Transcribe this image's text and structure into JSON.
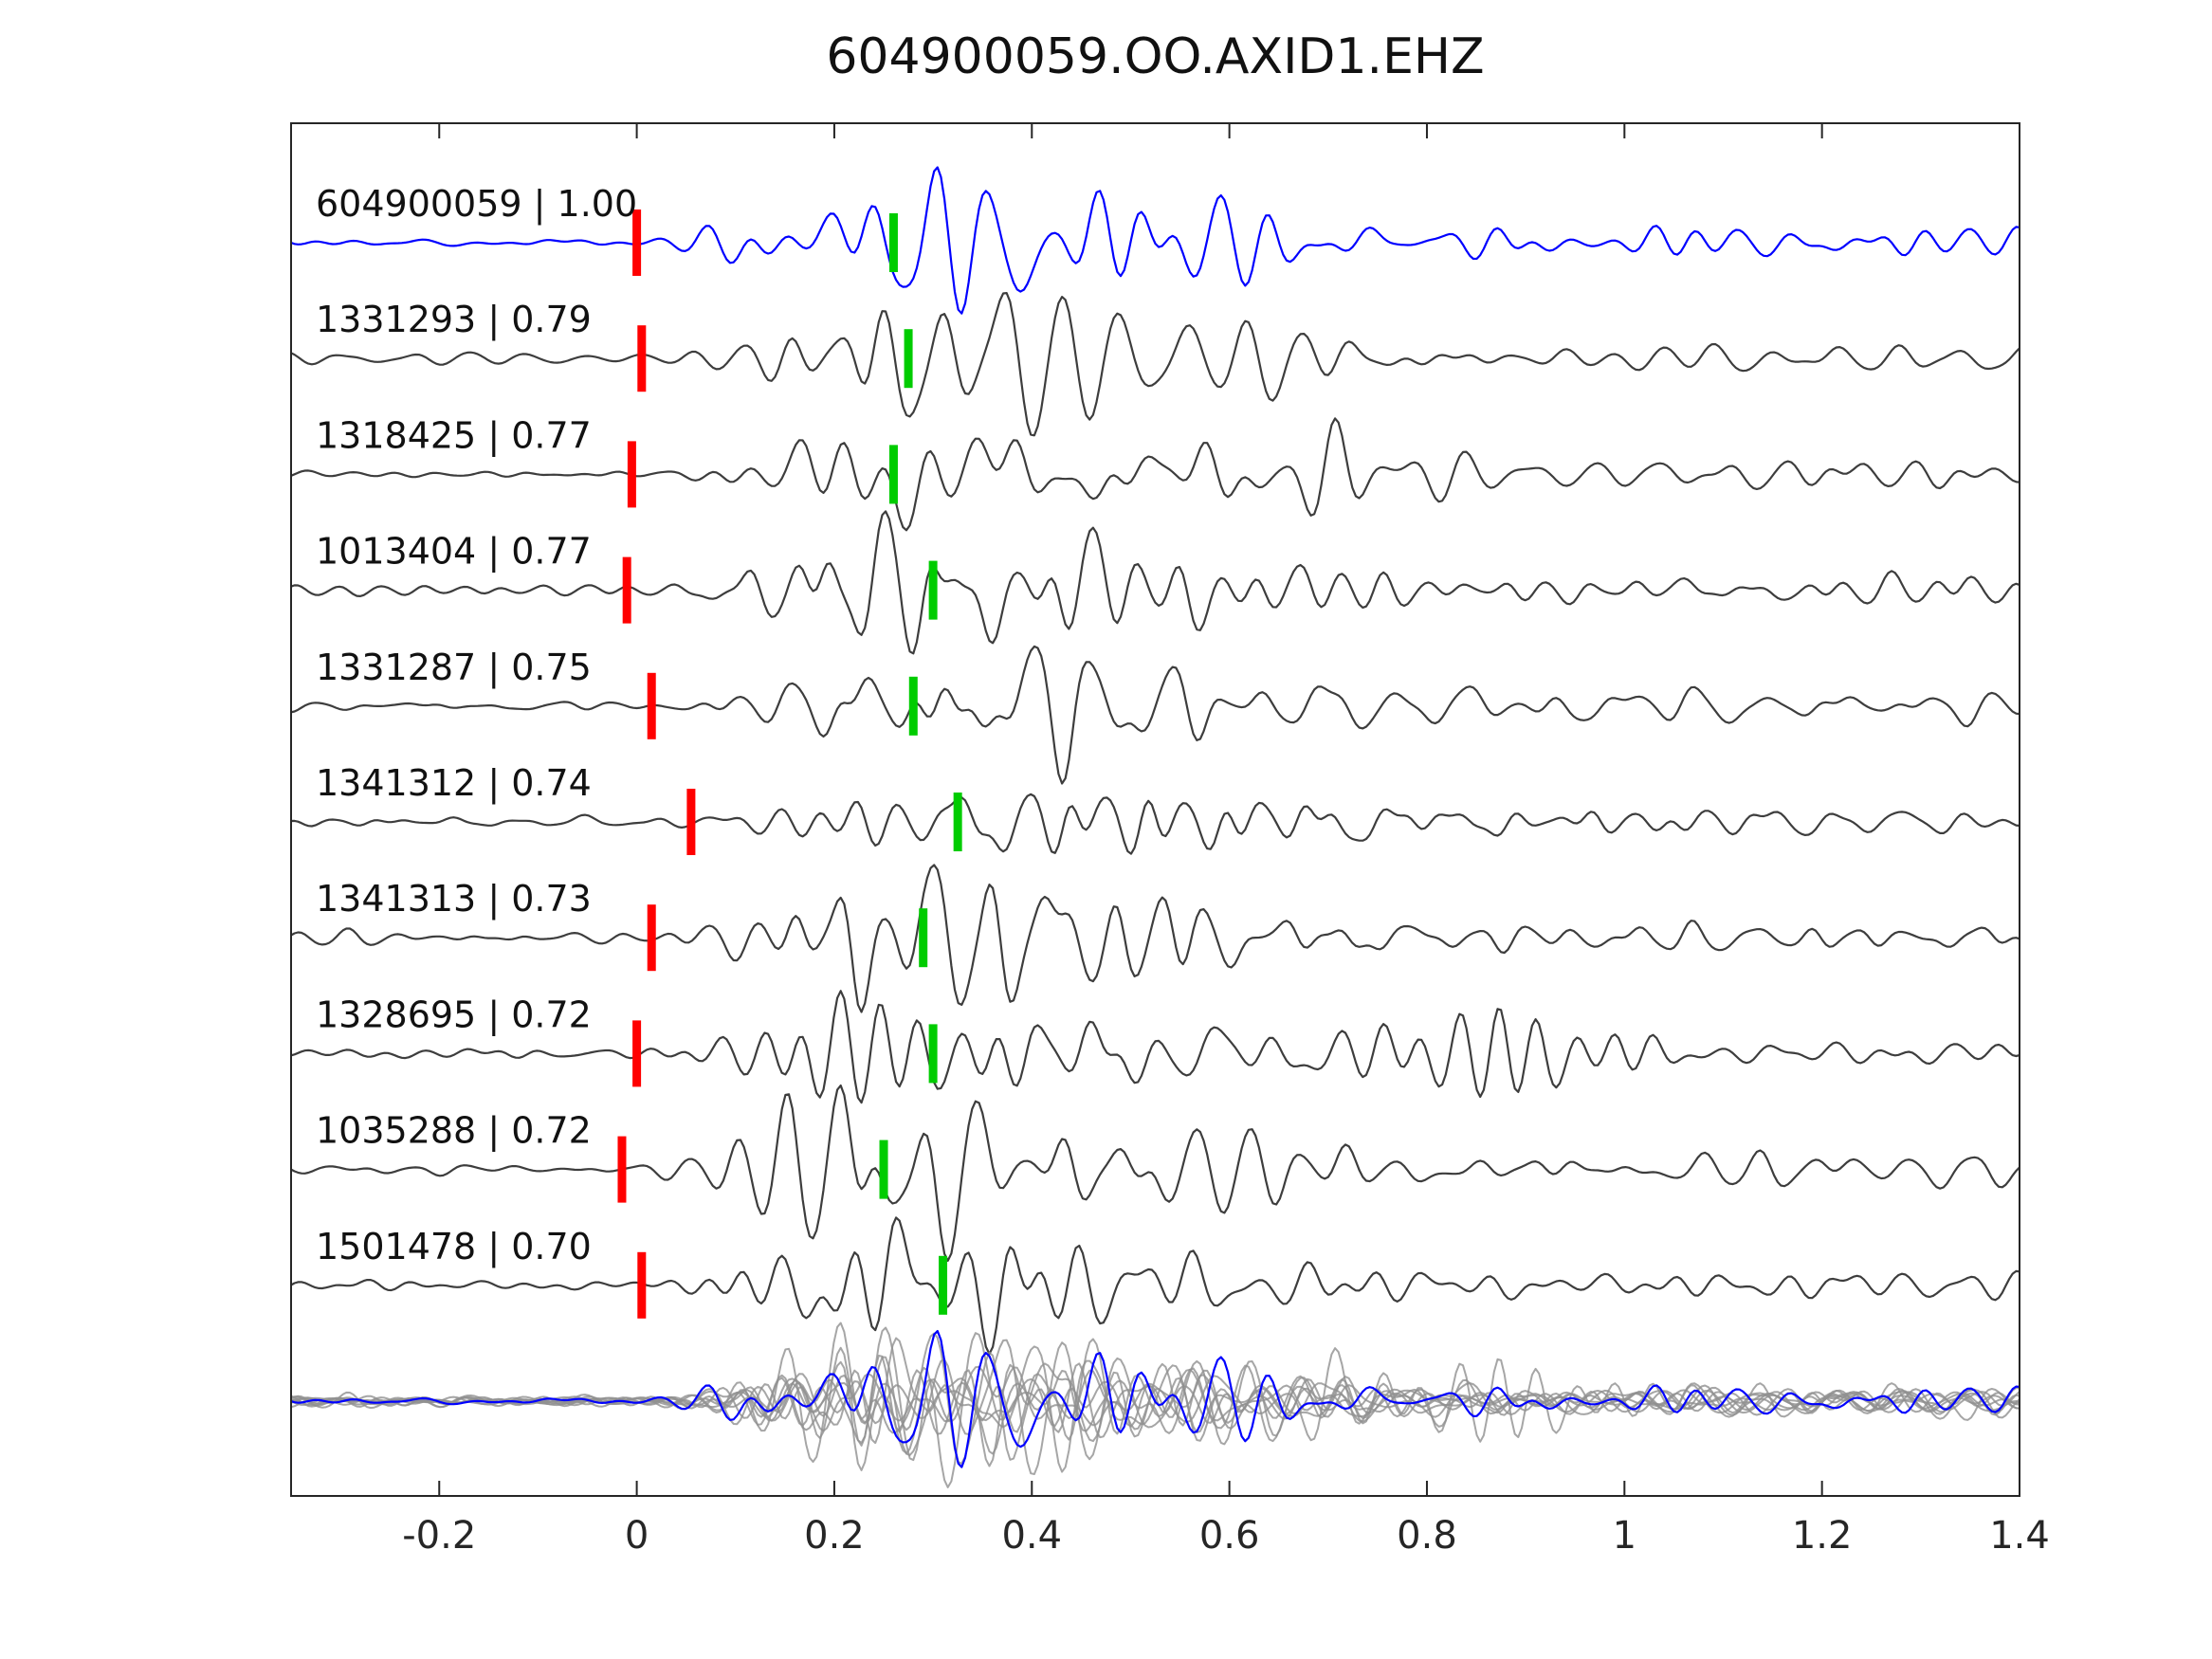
{
  "title": "604900059.OO.AXID1.EHZ",
  "colors": {
    "template_trace": "#0000ff",
    "match_trace": "#3d3d3d",
    "overlay_trace": "#909090",
    "pick_red": "#ff0000",
    "pick_green": "#00cc00",
    "axis": "#262626",
    "background": "#ffffff"
  },
  "chart_data": {
    "type": "line",
    "title": "604900059.OO.AXID1.EHZ",
    "xlabel": "",
    "ylabel": "",
    "xlim": [
      -0.35,
      1.4
    ],
    "x_ticks": [
      -0.2,
      0,
      0.2,
      0.4,
      0.6,
      0.8,
      1,
      1.2,
      1.4
    ],
    "x_tick_labels": [
      "-0.2",
      "0",
      "0.2",
      "0.4",
      "0.6",
      "0.8",
      "1",
      "1.2",
      "1.4"
    ],
    "grid": false,
    "legend": "none",
    "traces": [
      {
        "id": "604900059",
        "correlation": "1.00",
        "label": "604900059 | 1.00",
        "color": "#0000ff",
        "pick_red": 0.0,
        "pick_green": 0.26
      },
      {
        "id": "1331293",
        "correlation": "0.79",
        "label": "1331293 | 0.79",
        "color": "#3d3d3d",
        "pick_red": 0.005,
        "pick_green": 0.275
      },
      {
        "id": "1318425",
        "correlation": "0.77",
        "label": "1318425 | 0.77",
        "color": "#3d3d3d",
        "pick_red": -0.005,
        "pick_green": 0.26
      },
      {
        "id": "1013404",
        "correlation": "0.77",
        "label": "1013404 | 0.77",
        "color": "#3d3d3d",
        "pick_red": -0.01,
        "pick_green": 0.3
      },
      {
        "id": "1331287",
        "correlation": "0.75",
        "label": "1331287 | 0.75",
        "color": "#3d3d3d",
        "pick_red": 0.015,
        "pick_green": 0.28
      },
      {
        "id": "1341312",
        "correlation": "0.74",
        "label": "1341312 | 0.74",
        "color": "#3d3d3d",
        "pick_red": 0.055,
        "pick_green": 0.325
      },
      {
        "id": "1341313",
        "correlation": "0.73",
        "label": "1341313 | 0.73",
        "color": "#3d3d3d",
        "pick_red": 0.015,
        "pick_green": 0.29
      },
      {
        "id": "1328695",
        "correlation": "0.72",
        "label": "1328695 | 0.72",
        "color": "#3d3d3d",
        "pick_red": 0.0,
        "pick_green": 0.3
      },
      {
        "id": "1035288",
        "correlation": "0.72",
        "label": "1035288 | 0.72",
        "color": "#3d3d3d",
        "pick_red": -0.015,
        "pick_green": 0.25
      },
      {
        "id": "1501478",
        "correlation": "0.70",
        "label": "1501478 | 0.70",
        "color": "#3d3d3d",
        "pick_red": 0.005,
        "pick_green": 0.31
      }
    ],
    "overlay_row": {
      "description": "all matched traces overlaid in gray with blue template on top",
      "trace_color": "#909090",
      "template_color": "#0000ff"
    }
  }
}
